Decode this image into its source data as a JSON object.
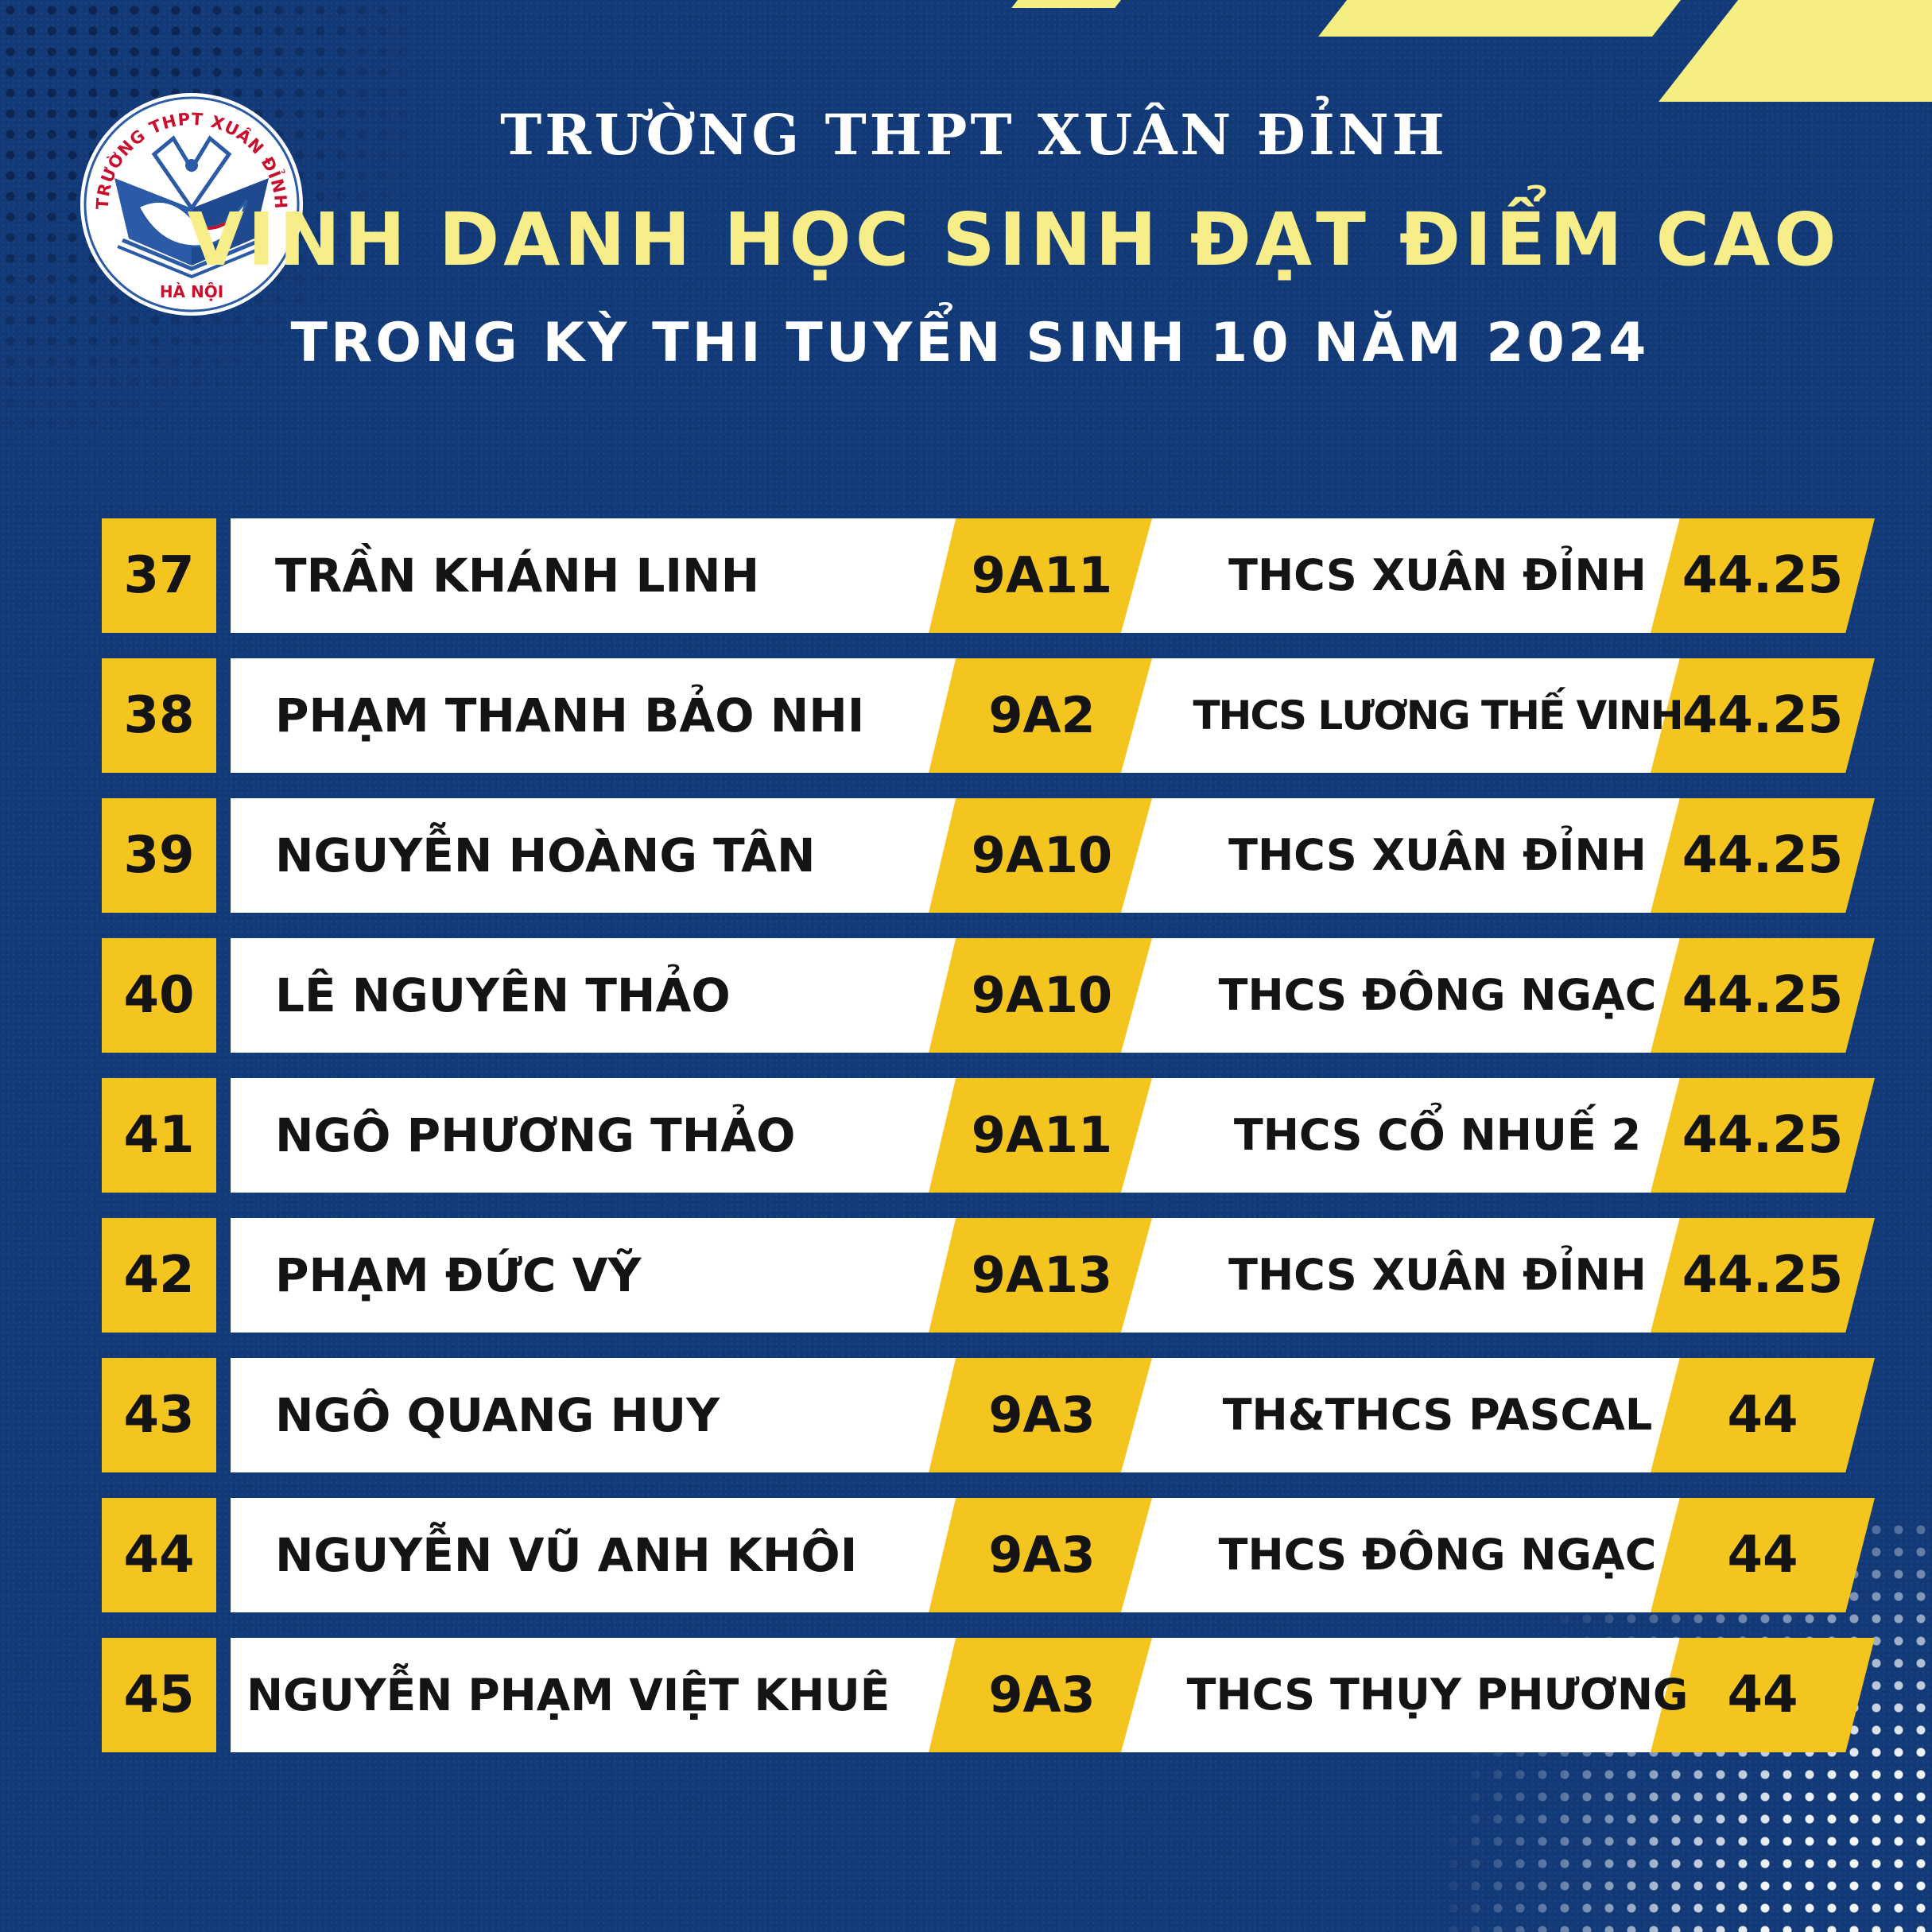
{
  "header": {
    "school_name": "TRƯỜNG THPT XUÂN ĐỈNH",
    "title": "VINH DANH HỌC SINH ĐẠT ĐIỂM CAO",
    "subtitle": "TRONG KỲ THI TUYỂN SINH 10 NĂM 2024"
  },
  "logo": {
    "ring_text": "TRƯỜNG THPT XUÂN ĐỈNH",
    "bottom_text": "HÀ NỘI",
    "colors": {
      "blue": "#2b5aa6",
      "red": "#c8102e"
    }
  },
  "colors": {
    "background": "#123a78",
    "accent_yellow": "#f5c51f",
    "title_yellow": "#f7ee8a",
    "stripe": "#f5ef82"
  },
  "students": [
    {
      "rank": "37",
      "name": "TRẦN KHÁNH LINH",
      "class": "9A11",
      "school": "THCS XUÂN ĐỈNH",
      "score": "44.25"
    },
    {
      "rank": "38",
      "name": "PHẠM THANH BẢO NHI",
      "class": "9A2",
      "school": "THCS LƯƠNG THẾ VINH",
      "score": "44.25"
    },
    {
      "rank": "39",
      "name": "NGUYỄN HOÀNG TÂN",
      "class": "9A10",
      "school": "THCS XUÂN ĐỈNH",
      "score": "44.25"
    },
    {
      "rank": "40",
      "name": "LÊ NGUYÊN THẢO",
      "class": "9A10",
      "school": "THCS ĐÔNG NGẠC",
      "score": "44.25"
    },
    {
      "rank": "41",
      "name": "NGÔ PHƯƠNG THẢO",
      "class": "9A11",
      "school": "THCS CỔ NHUẾ 2",
      "score": "44.25"
    },
    {
      "rank": "42",
      "name": "PHẠM ĐỨC VỸ",
      "class": "9A13",
      "school": "THCS XUÂN ĐỈNH",
      "score": "44.25"
    },
    {
      "rank": "43",
      "name": "NGÔ QUANG HUY",
      "class": "9A3",
      "school": "TH&THCS PASCAL",
      "score": "44"
    },
    {
      "rank": "44",
      "name": "NGUYỄN VŨ ANH KHÔI",
      "class": "9A3",
      "school": "THCS ĐÔNG NGẠC",
      "score": "44"
    },
    {
      "rank": "45",
      "name": "NGUYỄN PHẠM VIỆT KHUÊ",
      "class": "9A3",
      "school": "THCS THỤY PHƯƠNG",
      "score": "44"
    }
  ]
}
